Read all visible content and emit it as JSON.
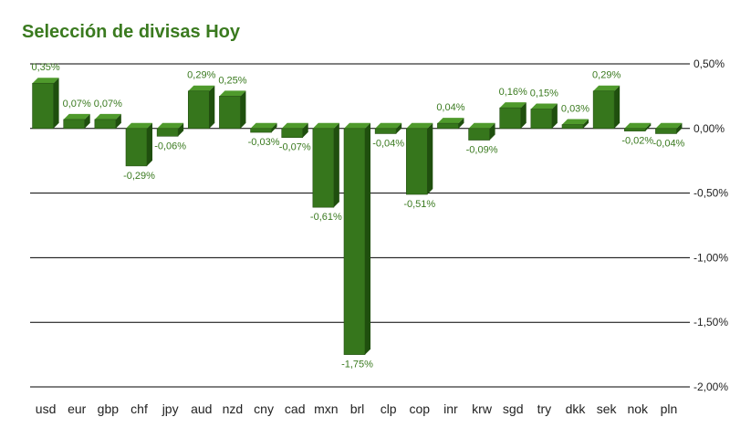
{
  "chart_data": {
    "type": "bar",
    "title": "Selección de divisas Hoy",
    "categories": [
      "usd",
      "eur",
      "gbp",
      "chf",
      "jpy",
      "aud",
      "nzd",
      "cny",
      "cad",
      "mxn",
      "brl",
      "clp",
      "cop",
      "inr",
      "krw",
      "sgd",
      "try",
      "dkk",
      "sek",
      "nok",
      "pln"
    ],
    "values": [
      0.35,
      0.07,
      0.07,
      -0.29,
      -0.06,
      0.29,
      0.25,
      -0.03,
      -0.07,
      -0.61,
      -1.75,
      -0.04,
      -0.51,
      0.04,
      -0.09,
      0.16,
      0.15,
      0.03,
      0.29,
      -0.02,
      -0.04
    ],
    "labels": [
      "0,35%",
      "0,07%",
      "0,07%",
      "-0,29%",
      "-0,06%",
      "0,29%",
      "0,25%",
      "-0,03%",
      "-0,07%",
      "-0,61%",
      "-1,75%",
      "-0,04%",
      "-0,51%",
      "0,04%",
      "-0,09%",
      "0,16%",
      "0,15%",
      "0,03%",
      "0,29%",
      "-0,02%",
      "-0,04%"
    ],
    "y_ticks": [
      0.5,
      0,
      -0.5,
      -1,
      -1.5,
      -2
    ],
    "y_tick_labels": [
      "0,50%",
      "0,00%",
      "-0,50%",
      "-1,00%",
      "-1,50%",
      "-2,00%"
    ],
    "ylim": [
      -2,
      0.5
    ],
    "grid": true,
    "y_axis_side": "right",
    "bar_color": "#36761c",
    "label_color": "#3a7a1f"
  }
}
